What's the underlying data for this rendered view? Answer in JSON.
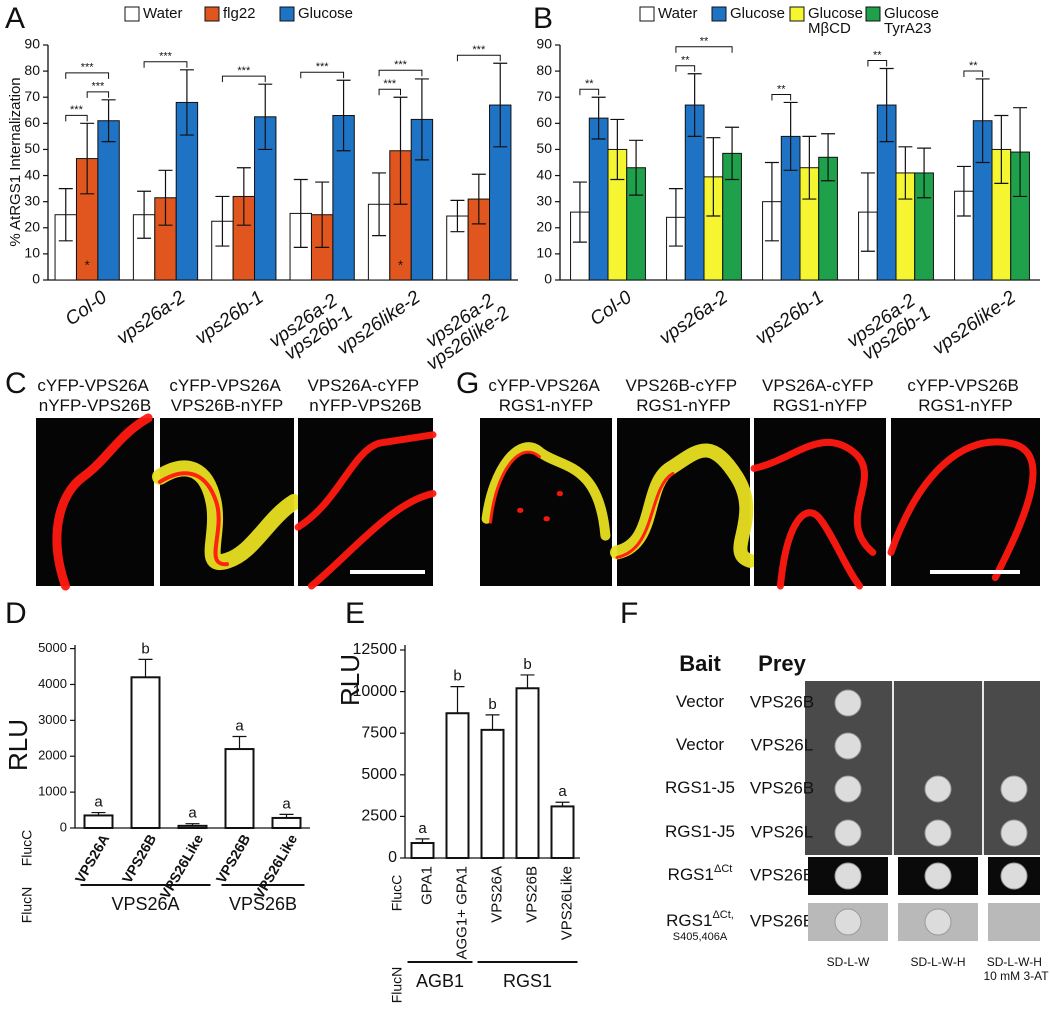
{
  "chart_data": [
    {
      "type": "bar",
      "panel": "A",
      "ylabel": "% AtRGS1 Internalization",
      "categories": [
        "Col-0",
        "vps26a-2",
        "vps26b-1",
        "vps26a-2 vps26b-1",
        "vps26like-2",
        "vps26a-2 vps26like-2"
      ],
      "series": [
        {
          "name": "Water",
          "color": "#ffffff",
          "values": [
            25,
            25,
            22.5,
            25.5,
            29,
            24.5
          ],
          "errors": [
            10,
            9,
            9.5,
            13,
            12,
            6
          ]
        },
        {
          "name": "flg22",
          "color": "#e0561e",
          "values": [
            46.5,
            31.5,
            32,
            25,
            49.5,
            31
          ],
          "errors": [
            13.5,
            10.5,
            11,
            12.5,
            20.5,
            9.5
          ]
        },
        {
          "name": "Glucose",
          "color": "#1f73c4",
          "values": [
            61,
            68,
            62.5,
            63,
            61.5,
            67
          ],
          "errors": [
            8,
            12.5,
            12.5,
            13.5,
            15.5,
            16
          ]
        }
      ],
      "ylim": [
        0,
        90
      ],
      "yticks": [
        0,
        10,
        20,
        30,
        40,
        50,
        60,
        70,
        80,
        90
      ],
      "error_bars": "both",
      "significance": [
        {
          "text": "***",
          "category": 0,
          "from": 0,
          "to": 1
        },
        {
          "text": "***",
          "category": 0,
          "from": 1,
          "to": 2
        },
        {
          "text": "***",
          "category": 0,
          "from": 0,
          "to": 2
        },
        {
          "text": "***",
          "category": 1,
          "from": 0,
          "to": 2
        },
        {
          "text": "***",
          "category": 2,
          "from": 0,
          "to": 2
        },
        {
          "text": "***",
          "category": 3,
          "from": 0,
          "to": 2
        },
        {
          "text": "***",
          "category": 4,
          "from": 0,
          "to": 1
        },
        {
          "text": "***",
          "category": 4,
          "from": 0,
          "to": 2
        },
        {
          "text": "***",
          "category": 5,
          "from": 0,
          "to": 2
        }
      ],
      "bar_notes": [
        {
          "text": "*",
          "category": 0,
          "series": 1
        },
        {
          "text": "*",
          "category": 4,
          "series": 1
        }
      ]
    },
    {
      "type": "bar",
      "panel": "B",
      "categories": [
        "Col-0",
        "vps26a-2",
        "vps26b-1",
        "vps26a-2 vps26b-1",
        "vps26like-2"
      ],
      "series": [
        {
          "name": "Water",
          "color": "#ffffff",
          "values": [
            26,
            24,
            30,
            26,
            34
          ],
          "errors": [
            11.5,
            11,
            15,
            15,
            9.5
          ]
        },
        {
          "name": "Glucose",
          "color": "#1f73c4",
          "values": [
            62,
            67,
            55,
            67,
            61
          ],
          "errors": [
            8,
            12,
            13,
            14,
            16
          ]
        },
        {
          "name": "Glucose MβCD",
          "color": "#f5f532",
          "values": [
            50,
            39.5,
            43,
            41,
            50
          ],
          "errors": [
            11.5,
            15,
            12,
            10,
            13
          ]
        },
        {
          "name": "Glucose TyrA23",
          "color": "#1fa04a",
          "values": [
            43,
            48.5,
            47,
            41,
            49
          ],
          "errors": [
            10.5,
            10,
            9,
            9.5,
            17
          ]
        }
      ],
      "ylim": [
        0,
        90
      ],
      "yticks": [
        0,
        10,
        20,
        30,
        40,
        50,
        60,
        70,
        80,
        90
      ],
      "error_bars": "both",
      "significance": [
        {
          "text": "**",
          "category": 0,
          "from": 0,
          "to": 1
        },
        {
          "text": "**",
          "category": 1,
          "from": 0,
          "to": 1
        },
        {
          "text": "**",
          "category": 1,
          "from": 0,
          "to": 3
        },
        {
          "text": "**",
          "category": 2,
          "from": 0,
          "to": 1
        },
        {
          "text": "**",
          "category": 3,
          "from": 0,
          "to": 1
        },
        {
          "text": "**",
          "category": 4,
          "from": 0,
          "to": 1
        }
      ]
    },
    {
      "type": "bar",
      "panel": "D",
      "ylabel": "RLU",
      "categories": [
        "VPS26A",
        "VPS26B",
        "VPS26Like",
        "VPS26B",
        "VPS26Like"
      ],
      "values": [
        350,
        4200,
        60,
        2200,
        280
      ],
      "errors": [
        80,
        500,
        60,
        350,
        100
      ],
      "color": "#ffffff",
      "ylim": [
        0,
        5100
      ],
      "yticks": [
        0,
        1000,
        2000,
        3000,
        4000,
        5000
      ],
      "error_bars": "upper",
      "annotations": [
        "a",
        "b",
        "a",
        "a",
        "a"
      ],
      "category_axis_label": "FlucC",
      "group_axis_label": "FlucN",
      "groups": [
        {
          "label": "VPS26A",
          "from": 0,
          "to": 2
        },
        {
          "label": "VPS26B",
          "from": 3,
          "to": 4
        }
      ]
    },
    {
      "type": "bar",
      "panel": "E",
      "ylabel": "RLU",
      "categories": [
        "GPA1",
        "AGG1+ GPA1",
        "VPS26A",
        "VPS26B",
        "VPS26Like"
      ],
      "values": [
        900,
        8700,
        7700,
        10200,
        3100
      ],
      "errors": [
        250,
        1600,
        900,
        800,
        250
      ],
      "color": "#ffffff",
      "ylim": [
        0,
        12800
      ],
      "yticks": [
        0,
        2500,
        5000,
        7500,
        10000,
        12500
      ],
      "error_bars": "upper",
      "annotations": [
        "a",
        "b",
        "b",
        "b",
        "a"
      ],
      "category_axis_label": "FlucC",
      "group_axis_label": "FlucN",
      "groups": [
        {
          "label": "AGB1",
          "from": 0,
          "to": 1
        },
        {
          "label": "RGS1",
          "from": 2,
          "to": 4
        }
      ]
    }
  ],
  "panel_c": {
    "panel": "C",
    "labels": [
      "cYFP-VPS26A nYFP-VPS26B",
      "cYFP-VPS26A VPS26B-nYFP",
      "VPS26A-cYFP nYFP-VPS26B"
    ]
  },
  "panel_g": {
    "panel": "G",
    "labels": [
      "cYFP-VPS26A RGS1-nYFP",
      "VPS26B-cYFP RGS1-nYFP",
      "VPS26A-cYFP RGS1-nYFP",
      "cYFP-VPS26B RGS1-nYFP"
    ]
  },
  "panel_f": {
    "panel": "F",
    "headers": [
      "Bait",
      "Prey"
    ],
    "rows": [
      {
        "bait": {
          "text": "Vector"
        },
        "prey": "VPS26B"
      },
      {
        "bait": {
          "text": "Vector"
        },
        "prey": "VPS26L"
      },
      {
        "bait": {
          "text": "RGS1-J5"
        },
        "prey": "VPS26B"
      },
      {
        "bait": {
          "text": "RGS1-J5"
        },
        "prey": "VPS26L"
      },
      {
        "bait": {
          "text": "RGS1",
          "sup": "ΔCt"
        },
        "prey": "VPS26B"
      },
      {
        "bait": {
          "text": "RGS1",
          "sup": "ΔCt,",
          "sub": "S405,406A"
        },
        "prey": "VPS26B"
      }
    ],
    "media": [
      "SD-L-W",
      "SD-L-W-H",
      "SD-L-W-H 10 mM 3-AT"
    ]
  }
}
